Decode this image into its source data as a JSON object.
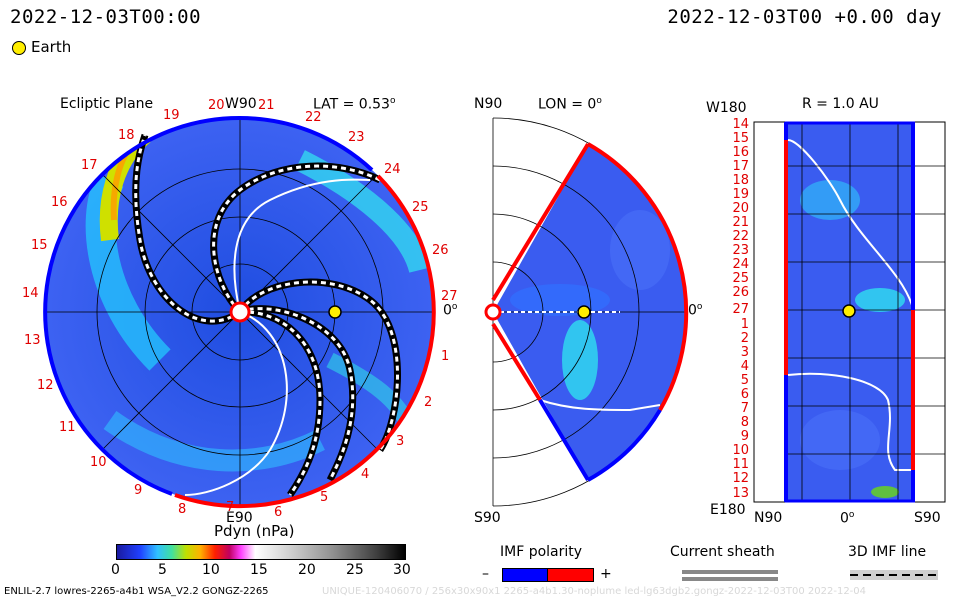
{
  "header": {
    "left_time": "2022-12-03T00:00",
    "right_time": "2022-12-03T00 +0.00 day",
    "legend_label": "Earth"
  },
  "panel_ecliptic": {
    "title": "Ecliptic Plane",
    "w90": "W90",
    "e90": "E90",
    "lat_label": "LAT = 0.53",
    "zero_label": "0",
    "ticks": [
      "19",
      "20",
      "21",
      "22",
      "23",
      "24",
      "25",
      "26",
      "27",
      "1",
      "2",
      "3",
      "4",
      "5",
      "6",
      "7",
      "8",
      "9",
      "10",
      "11",
      "12",
      "13",
      "14",
      "15",
      "16",
      "17",
      "18"
    ]
  },
  "panel_meridional": {
    "n_label": "N90",
    "s_label": "S90",
    "lon_label": "LON = 0",
    "zero_label": "0"
  },
  "panel_map": {
    "r_label": "R = 1.0 AU",
    "w_label": "W180",
    "e_label": "E180",
    "x_labels": [
      "N90",
      "0",
      "S90"
    ],
    "y_labels": [
      "14",
      "15",
      "16",
      "17",
      "18",
      "19",
      "20",
      "21",
      "22",
      "23",
      "24",
      "25",
      "26",
      "27",
      "1",
      "2",
      "3",
      "4",
      "5",
      "6",
      "7",
      "8",
      "9",
      "10",
      "11",
      "12",
      "13"
    ]
  },
  "colorbar": {
    "title": "Pdyn (nPa)",
    "ticks": [
      "0",
      "5",
      "10",
      "15",
      "20",
      "25",
      "30"
    ]
  },
  "legends": {
    "imf_title": "IMF polarity",
    "imf_minus": "–",
    "imf_plus": "+",
    "sheath_title": "Current sheath",
    "imf3d_title": "3D IMF line"
  },
  "footer": {
    "left": "ENLIL-2.7 lowres-2265-a4b1 WSA_V2.2 GONGZ-2265",
    "right_faint": "UNIQUE-120406070 / 256x30x90x1 2265-a4b1.30-noplume led-lg63dgb2.gongz-2022-12-03T00 2022-12-04"
  },
  "colors": {
    "blue_bg": "#3a5cf0",
    "red_polarity": "#ff0000",
    "blue_polarity": "#0000ff",
    "earth": "#ffee00"
  }
}
